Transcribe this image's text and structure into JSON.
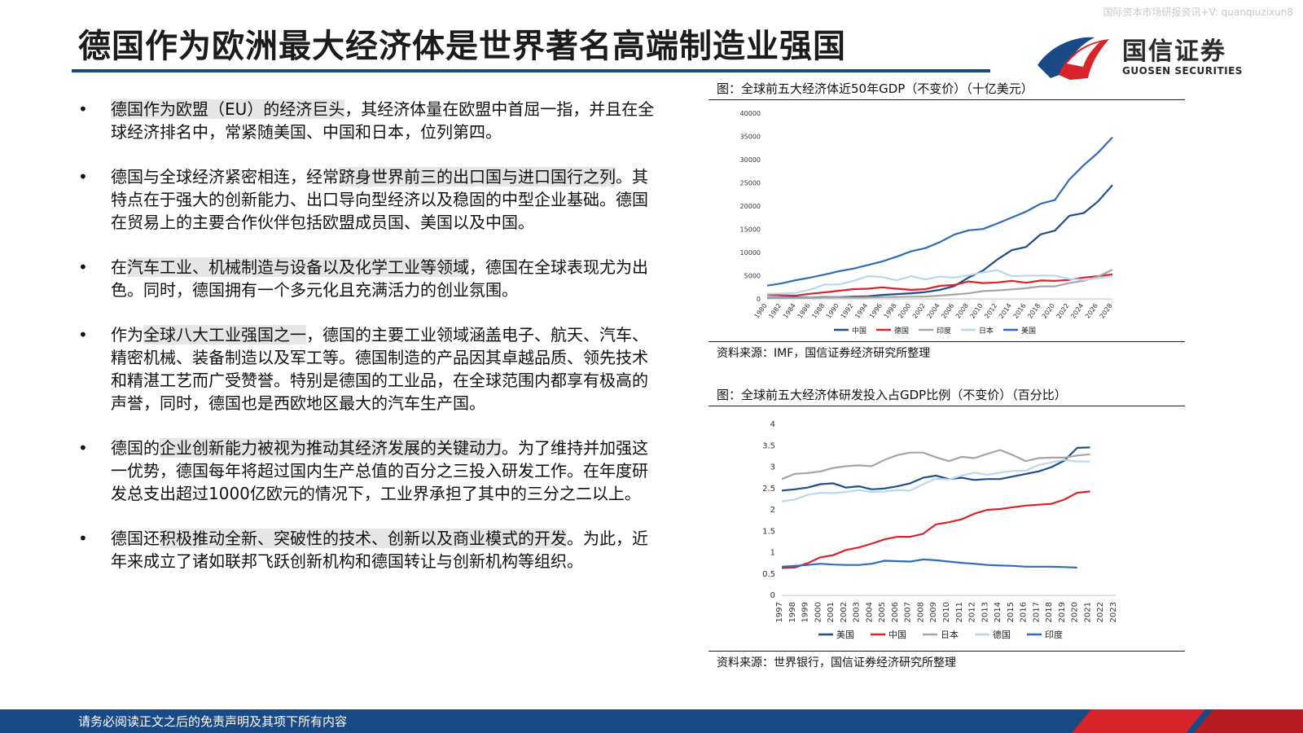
{
  "watermark": "国际资本市场研报资讯+V: quanqiuzixun8",
  "title": "德国作为欧洲最大经济体是世界著名高端制造业强国",
  "logo": {
    "name": "国信证券",
    "name_en": "GUOSEN SECURITIES"
  },
  "colors": {
    "brand_blue": "#1a4a86",
    "brand_red": "#d8232a"
  },
  "bullets": [
    {
      "hl": "德国作为欧盟（EU）的经济巨头",
      "rest": "，其经济体量在欧盟中首屈一指，并且在全球经济排名中，常紧随美国、中国和日本，位列第四。"
    },
    {
      "pre": "德国与全球经济紧密相连，经常",
      "hl": "跻身世界前三的出口国与进口国行之列",
      "rest": "。其特点在于强大的创新能力、出口导向型经济以及稳固的中型企业基础。德国在贸易上的主要合作伙伴包括欧盟成员国、美国以及中国。"
    },
    {
      "pre": "在",
      "hl": "汽车工业、机械制造与设备以及化学工业等领域",
      "rest": "，德国在全球表现尤为出色。同时，德国拥有一个多元化且充满活力的创业氛围。"
    },
    {
      "pre": "作为",
      "hl": "全球八大工业强国之一",
      "rest": "，德国的主要工业领域涵盖电子、航天、汽车、精密机械、装备制造以及军工等。德国制造的产品因其卓越品质、领先技术和精湛工艺而广受赞誉。特别是德国的工业品，在全球范围内都享有极高的声誉，同时，德国也是西欧地区最大的汽车生产国。"
    },
    {
      "pre": "德国的",
      "hl": "企业创新能力被视为推动其经济发展的关键动力",
      "rest": "。为了维持并加强这一优势，德国每年将超过国内生产总值的百分之三投入研发工作。在年度研发总支出超过1000亿欧元的情况下，工业界承担了其中的三分之二以上。"
    },
    {
      "pre": "德国还",
      "hl": "积极推动全新、突破性的技术、创新以及商业模式的开发",
      "rest": "。为此，近年来成立了诸如联邦飞跃创新机构和德国转让与创新机构等组织。"
    }
  ],
  "chart1": {
    "title": "图：全球前五大经济体近50年GDP（不变价）（十亿美元）",
    "source": "资料来源：IMF，国信证券经济研究所整理",
    "chart_data": {
      "type": "line",
      "x": [
        1980,
        1982,
        1984,
        1986,
        1988,
        1990,
        1992,
        1994,
        1996,
        1998,
        2000,
        2002,
        2004,
        2006,
        2008,
        2010,
        2012,
        2014,
        2016,
        2018,
        2020,
        2022,
        2024,
        2026,
        2028
      ],
      "x_tick_labels": [
        "1980",
        "1982",
        "1984",
        "1986",
        "1988",
        "1990",
        "1992",
        "1994",
        "1996",
        "1998",
        "2000",
        "2002",
        "2004",
        "2006",
        "2008",
        "2010",
        "2012",
        "2014",
        "2016",
        "2018",
        "2020",
        "2022",
        "2024",
        "2026",
        "2028"
      ],
      "ylim": [
        0,
        40000
      ],
      "y_ticks": [
        0,
        5000,
        10000,
        15000,
        20000,
        25000,
        30000,
        35000,
        40000
      ],
      "legend_position": "bottom",
      "series": [
        {
          "name": "中国",
          "color": "#1f4e8c",
          "values": [
            300,
            290,
            310,
            300,
            410,
            390,
            490,
            560,
            860,
            1030,
            1210,
            1470,
            1950,
            2750,
            4600,
            6100,
            8500,
            10500,
            11200,
            13900,
            14700,
            17900,
            18500,
            21000,
            24500
          ]
        },
        {
          "name": "德国",
          "color": "#d8232a",
          "values": [
            950,
            780,
            700,
            1100,
            1400,
            1760,
            2100,
            2200,
            2500,
            2200,
            1950,
            2080,
            2800,
            3000,
            3750,
            3400,
            3550,
            3900,
            3480,
            3970,
            3890,
            4100,
            4600,
            4900,
            5300
          ]
        },
        {
          "name": "印度",
          "color": "#a6a6a6",
          "values": [
            190,
            200,
            210,
            240,
            290,
            320,
            290,
            330,
            400,
            420,
            470,
            510,
            710,
            950,
            1200,
            1680,
            1830,
            2050,
            2300,
            2700,
            2700,
            3400,
            3900,
            4800,
            6300
          ]
        },
        {
          "name": "日本",
          "color": "#bdd7ee",
          "values": [
            1100,
            1180,
            1300,
            2000,
            3100,
            3100,
            3900,
            4900,
            4700,
            4000,
            4900,
            4200,
            4800,
            4600,
            5100,
            5700,
            6200,
            4900,
            5000,
            5000,
            5000,
            4300,
            4100,
            4400,
            4900
          ]
        },
        {
          "name": "美国",
          "color": "#2e6db4",
          "values": [
            2860,
            3350,
            4040,
            4590,
            5240,
            5960,
            6520,
            7290,
            8070,
            9090,
            10250,
            10930,
            12220,
            13850,
            14770,
            15050,
            16250,
            17530,
            18800,
            20500,
            21300,
            25700,
            28800,
            31500,
            34800
          ]
        }
      ]
    }
  },
  "chart2": {
    "title": "图：全球前五大经济体研发投入占GDP比例（不变价）（百分比）",
    "source": "资料来源：世界银行，国信证券经济研究所整理",
    "chart_data": {
      "type": "line",
      "x": [
        1997,
        1998,
        1999,
        2000,
        2001,
        2002,
        2003,
        2004,
        2005,
        2006,
        2007,
        2008,
        2009,
        2010,
        2011,
        2012,
        2013,
        2014,
        2015,
        2016,
        2017,
        2018,
        2019,
        2020,
        2021,
        2022,
        2023
      ],
      "x_tick_labels": [
        "1997",
        "1998",
        "1999",
        "2000",
        "2001",
        "2002",
        "2003",
        "2004",
        "2005",
        "2006",
        "2007",
        "2008",
        "2009",
        "2010",
        "2011",
        "2012",
        "2013",
        "2014",
        "2015",
        "2016",
        "2017",
        "2018",
        "2019",
        "2020",
        "2021",
        "2022",
        "2023"
      ],
      "ylim": [
        0,
        4
      ],
      "y_ticks": [
        0,
        0.5,
        1,
        1.5,
        2,
        2.5,
        3,
        3.5,
        4
      ],
      "y_tick_labels": [
        "0",
        "0.5",
        "1",
        "1.5",
        "2",
        "2.5",
        "3",
        "3.5",
        "4"
      ],
      "legend_position": "bottom",
      "series": [
        {
          "name": "美国",
          "color": "#1f4e8c",
          "values": [
            2.45,
            2.48,
            2.52,
            2.6,
            2.62,
            2.52,
            2.55,
            2.48,
            2.5,
            2.55,
            2.62,
            2.75,
            2.8,
            2.72,
            2.75,
            2.7,
            2.72,
            2.72,
            2.78,
            2.84,
            2.9,
            3.0,
            3.15,
            3.45,
            3.46,
            null,
            null
          ]
        },
        {
          "name": "中国",
          "color": "#d8232a",
          "values": [
            0.64,
            0.65,
            0.75,
            0.89,
            0.94,
            1.06,
            1.12,
            1.21,
            1.31,
            1.37,
            1.37,
            1.44,
            1.66,
            1.71,
            1.78,
            1.91,
            2.0,
            2.02,
            2.06,
            2.1,
            2.12,
            2.14,
            2.24,
            2.4,
            2.43,
            null,
            null
          ]
        },
        {
          "name": "日本",
          "color": "#a6a6a6",
          "values": [
            2.72,
            2.84,
            2.86,
            2.9,
            2.98,
            3.02,
            3.04,
            3.02,
            3.17,
            3.28,
            3.34,
            3.34,
            3.23,
            3.14,
            3.24,
            3.21,
            3.31,
            3.4,
            3.28,
            3.14,
            3.21,
            3.22,
            3.22,
            3.27,
            3.3,
            null,
            null
          ]
        },
        {
          "name": "德国",
          "color": "#bdd7ee",
          "values": [
            2.2,
            2.24,
            2.35,
            2.4,
            2.39,
            2.42,
            2.46,
            2.42,
            2.43,
            2.46,
            2.45,
            2.6,
            2.73,
            2.71,
            2.8,
            2.87,
            2.82,
            2.87,
            2.91,
            2.92,
            3.05,
            3.11,
            3.17,
            3.13,
            3.13,
            null,
            null
          ]
        },
        {
          "name": "印度",
          "color": "#2e6db4",
          "values": [
            0.67,
            0.69,
            0.71,
            0.74,
            0.72,
            0.71,
            0.71,
            0.74,
            0.81,
            0.8,
            0.79,
            0.84,
            0.82,
            0.79,
            0.76,
            0.74,
            0.71,
            0.7,
            0.69,
            0.67,
            0.67,
            0.67,
            0.66,
            0.65,
            null,
            null,
            null
          ]
        }
      ]
    }
  },
  "footer": {
    "text": "请务必阅读正文之后的免责声明及其项下所有内容"
  }
}
